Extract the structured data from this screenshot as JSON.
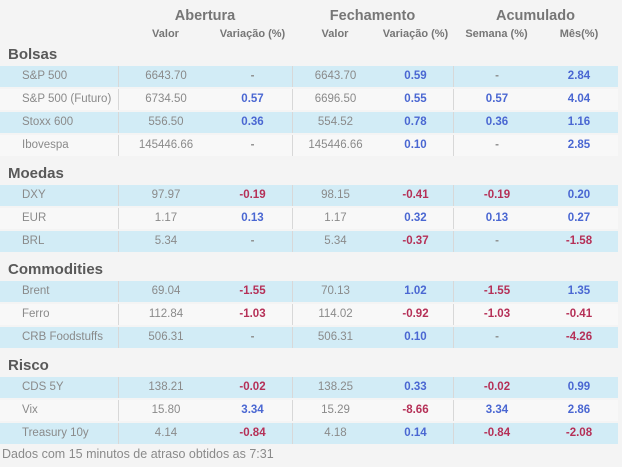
{
  "chart_data": {
    "type": "table",
    "column_groups": [
      {
        "label": "Abertura",
        "sub": [
          "Valor",
          "Variação (%)"
        ]
      },
      {
        "label": "Fechamento",
        "sub": [
          "Valor",
          "Variação (%)"
        ]
      },
      {
        "label": "Acumulado",
        "sub": [
          "Semana (%)",
          "Mês(%)"
        ]
      }
    ],
    "sections": [
      {
        "title": "Bolsas",
        "rows": [
          {
            "name": "S&P 500",
            "values": [
              "6643.70",
              "-",
              "6643.70",
              "0.59",
              "-",
              "2.84"
            ]
          },
          {
            "name": "S&P 500 (Futuro)",
            "values": [
              "6734.50",
              "0.57",
              "6696.50",
              "0.55",
              "0.57",
              "4.04"
            ]
          },
          {
            "name": "Stoxx 600",
            "values": [
              "556.50",
              "0.36",
              "554.52",
              "0.78",
              "0.36",
              "1.16"
            ]
          },
          {
            "name": "Ibovespa",
            "values": [
              "145446.66",
              "-",
              "145446.66",
              "0.10",
              "-",
              "2.85"
            ]
          }
        ]
      },
      {
        "title": "Moedas",
        "rows": [
          {
            "name": "DXY",
            "values": [
              "97.97",
              "-0.19",
              "98.15",
              "-0.41",
              "-0.19",
              "0.20"
            ]
          },
          {
            "name": "EUR",
            "values": [
              "1.17",
              "0.13",
              "1.17",
              "0.32",
              "0.13",
              "0.27"
            ]
          },
          {
            "name": "BRL",
            "values": [
              "5.34",
              "-",
              "5.34",
              "-0.37",
              "-",
              "-1.58"
            ]
          }
        ]
      },
      {
        "title": "Commodities",
        "rows": [
          {
            "name": "Brent",
            "values": [
              "69.04",
              "-1.55",
              "70.13",
              "1.02",
              "-1.55",
              "1.35"
            ]
          },
          {
            "name": "Ferro",
            "values": [
              "112.84",
              "-1.03",
              "114.02",
              "-0.92",
              "-1.03",
              "-0.41"
            ]
          },
          {
            "name": "CRB Foodstuffs",
            "values": [
              "506.31",
              "-",
              "506.31",
              "0.10",
              "-",
              "-4.26"
            ]
          }
        ]
      },
      {
        "title": "Risco",
        "rows": [
          {
            "name": "CDS 5Y",
            "values": [
              "138.21",
              "-0.02",
              "138.25",
              "0.33",
              "-0.02",
              "0.99"
            ]
          },
          {
            "name": "Vix",
            "values": [
              "15.80",
              "3.34",
              "15.29",
              "-8.66",
              "3.34",
              "2.86"
            ]
          },
          {
            "name": "Treasury 10y",
            "values": [
              "4.14",
              "-0.84",
              "4.18",
              "0.14",
              "-0.84",
              "-2.08"
            ]
          }
        ]
      }
    ],
    "footnote": "Dados com 15 minutos de atraso obtidos as 7:31"
  },
  "colors": {
    "positive_value": "#4a67d2",
    "negative_value": "#b53057",
    "row_highlight": "#d2ecf6",
    "row_alternate": "#f8f8f8",
    "background": "#f4f4f4",
    "header_text": "#767676",
    "section_title_text": "#595959"
  }
}
